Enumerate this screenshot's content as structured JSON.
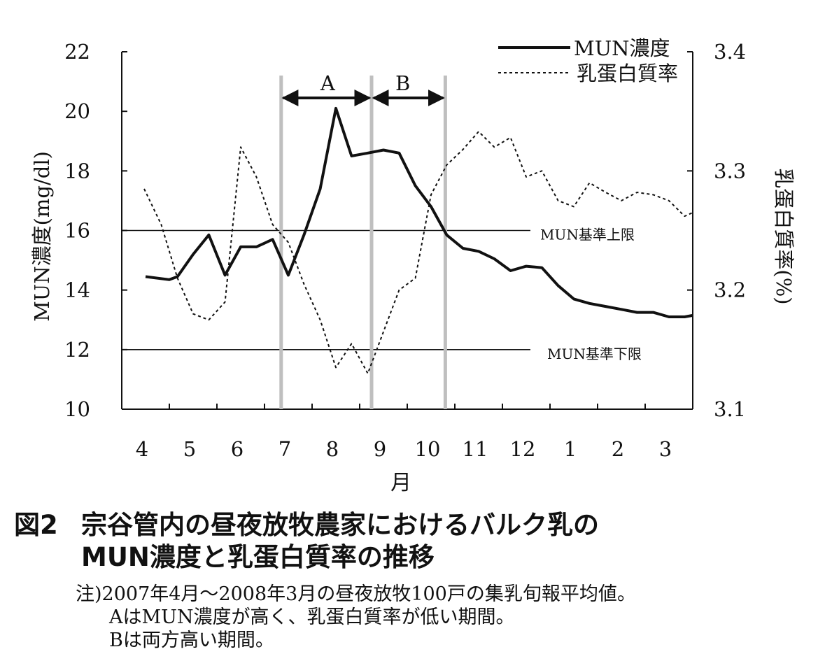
{
  "chart_data": {
    "type": "line",
    "x_categories": [
      "4",
      "5",
      "6",
      "7",
      "8",
      "9",
      "10",
      "11",
      "12",
      "1",
      "2",
      "3"
    ],
    "xlabel": "月",
    "ylabel_left": "MUN濃度(mg/dl)",
    "ylabel_right": "乳蛋白質率(%)",
    "ylim_left": [
      10,
      22
    ],
    "yticks_left": [
      10,
      12,
      14,
      16,
      18,
      20,
      22
    ],
    "ylim_right": [
      3.1,
      3.4
    ],
    "yticks_right": [
      "3.1",
      "3.2",
      "3.3",
      "3.4"
    ],
    "legend_position": "top-right",
    "series": [
      {
        "name": "MUN濃度",
        "axis": "left",
        "style": "solid",
        "x": [
          4.0,
          4.5,
          4.67,
          5.0,
          5.33,
          5.67,
          6.0,
          6.33,
          6.67,
          7.0,
          7.33,
          7.67,
          8.0,
          8.33,
          8.67,
          9.0,
          9.33,
          9.67,
          10.0,
          10.33,
          10.67,
          11.0,
          11.33,
          11.67,
          12.0,
          12.33,
          12.67,
          13.0,
          13.33,
          13.67,
          14.0,
          14.33,
          14.67,
          15.0,
          15.33,
          15.5
        ],
        "values": [
          14.45,
          14.35,
          14.45,
          15.2,
          15.85,
          14.5,
          15.45,
          15.45,
          15.7,
          14.5,
          15.85,
          17.4,
          20.1,
          18.5,
          18.6,
          18.7,
          18.6,
          17.5,
          16.8,
          15.85,
          15.4,
          15.3,
          15.05,
          14.65,
          14.8,
          14.75,
          14.15,
          13.7,
          13.55,
          13.45,
          13.35,
          13.25,
          13.25,
          13.1,
          13.1,
          13.15
        ]
      },
      {
        "name": "乳蛋白質率",
        "axis": "right",
        "style": "dotted",
        "x": [
          3.97,
          4.33,
          4.67,
          5.0,
          5.33,
          5.67,
          6.0,
          6.33,
          6.67,
          7.0,
          7.33,
          7.67,
          8.0,
          8.33,
          8.67,
          9.0,
          9.33,
          9.67,
          10.0,
          10.33,
          10.67,
          11.0,
          11.33,
          11.67,
          12.0,
          12.33,
          12.67,
          13.0,
          13.33,
          13.67,
          14.0,
          14.33,
          14.67,
          15.0,
          15.33,
          15.5
        ],
        "values": [
          3.285,
          3.255,
          3.21,
          3.18,
          3.175,
          3.19,
          3.32,
          3.295,
          3.255,
          3.24,
          3.205,
          3.175,
          3.135,
          3.155,
          3.13,
          3.165,
          3.2,
          3.21,
          3.28,
          3.305,
          3.318,
          3.333,
          3.32,
          3.328,
          3.295,
          3.3,
          3.275,
          3.27,
          3.29,
          3.282,
          3.275,
          3.282,
          3.28,
          3.275,
          3.262,
          3.265
        ]
      }
    ],
    "reference_lines": [
      {
        "value": 16,
        "axis": "left",
        "label": "MUN基準上限"
      },
      {
        "value": 12,
        "axis": "left",
        "label": "MUN基準下限"
      }
    ],
    "periods": [
      {
        "label": "A",
        "start": 6.85,
        "end": 8.75
      },
      {
        "label": "B",
        "start": 8.75,
        "end": 10.3
      }
    ]
  },
  "caption": {
    "number": "図2",
    "title_line1": "宗谷管内の昼夜放牧農家におけるバルク乳の",
    "title_line2": "MUN濃度と乳蛋白質率の推移"
  },
  "notes": {
    "line1": "注)2007年4月～2008年3月の昼夜放牧100戸の集乳旬報平均値。",
    "line2": "AはMUN濃度が高く、乳蛋白質率が低い期間。",
    "line3": "Bは両方高い期間。"
  },
  "colors": {
    "ink": "#111111",
    "period_marker": "#bfbfbf"
  }
}
